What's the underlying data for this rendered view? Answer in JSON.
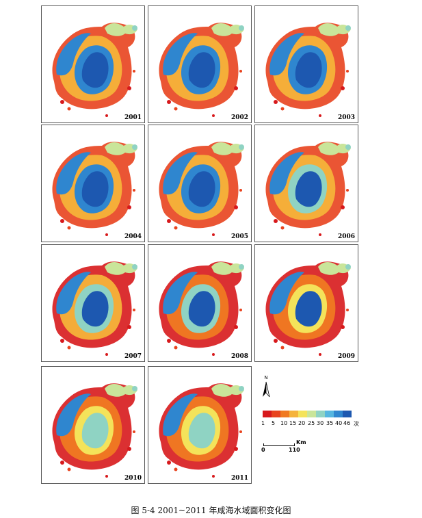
{
  "panels": [
    {
      "year": "2001"
    },
    {
      "year": "2002"
    },
    {
      "year": "2003"
    },
    {
      "year": "2004"
    },
    {
      "year": "2005"
    },
    {
      "year": "2006"
    },
    {
      "year": "2007"
    },
    {
      "year": "2008"
    },
    {
      "year": "2009"
    },
    {
      "year": "2010"
    },
    {
      "year": "2011"
    }
  ],
  "legend": {
    "north_label": "N",
    "ticks": [
      "1",
      "5",
      "10",
      "15",
      "20",
      "25",
      "30",
      "35",
      "40",
      "46",
      "次"
    ],
    "colors": [
      "#d7191c",
      "#e8431e",
      "#f07a22",
      "#f5b33a",
      "#f4e35a",
      "#c9e59a",
      "#8fd3c3",
      "#55b6e0",
      "#2f86cf",
      "#1d58b0"
    ],
    "scale_zero": "0",
    "scale_max": "110",
    "scale_unit": "Km"
  },
  "caption": "图 5-4  2001~2011 年咸海水域面积变化图"
}
